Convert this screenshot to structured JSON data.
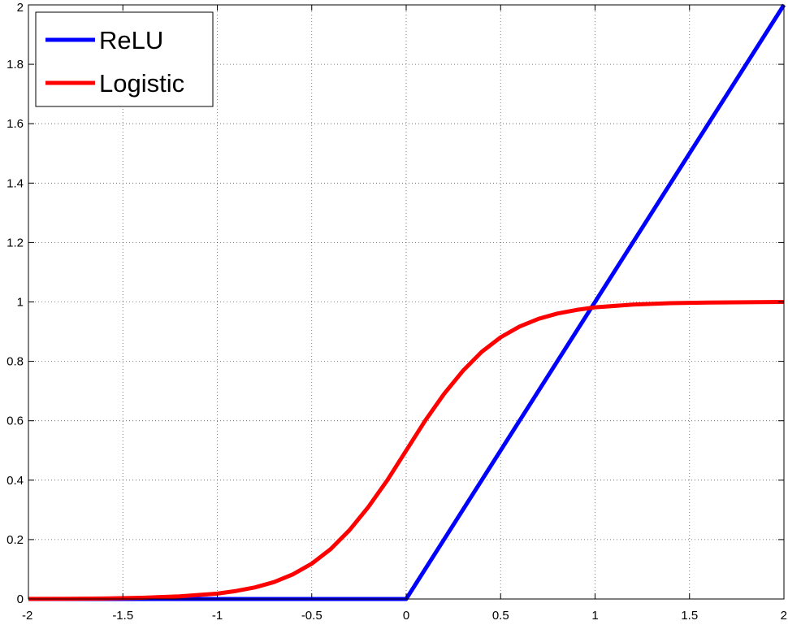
{
  "chart_data": {
    "type": "line",
    "title": "",
    "xlabel": "",
    "ylabel": "",
    "xlim": [
      -2,
      2
    ],
    "ylim": [
      0,
      2
    ],
    "grid": true,
    "legend_position": "top-left",
    "x_ticks": [
      "-2",
      "-1.5",
      "-1",
      "-0.5",
      "0",
      "0.5",
      "1",
      "1.5",
      "2"
    ],
    "y_ticks": [
      "0",
      "0.2",
      "0.4",
      "0.6",
      "0.8",
      "1",
      "1.2",
      "1.4",
      "1.6",
      "1.8",
      "2"
    ],
    "series": [
      {
        "name": "ReLU",
        "color": "#0000ff",
        "x": [
          -2,
          0,
          2
        ],
        "y": [
          0,
          0,
          2
        ]
      },
      {
        "name": "Logistic",
        "color": "#ff0000",
        "x": [
          -2,
          -1.8,
          -1.6,
          -1.4,
          -1.2,
          -1,
          -0.9,
          -0.8,
          -0.7,
          -0.6,
          -0.5,
          -0.4,
          -0.3,
          -0.2,
          -0.1,
          0,
          0.1,
          0.2,
          0.3,
          0.4,
          0.5,
          0.6,
          0.7,
          0.8,
          0.9,
          1,
          1.2,
          1.4,
          1.6,
          1.8,
          2
        ],
        "y": [
          0.0003,
          0.0007,
          0.0017,
          0.0041,
          0.0091,
          0.018,
          0.027,
          0.039,
          0.057,
          0.083,
          0.119,
          0.168,
          0.232,
          0.31,
          0.4,
          0.5,
          0.6,
          0.69,
          0.768,
          0.832,
          0.881,
          0.917,
          0.943,
          0.961,
          0.973,
          0.982,
          0.991,
          0.996,
          0.998,
          0.999,
          1.0
        ]
      }
    ]
  }
}
